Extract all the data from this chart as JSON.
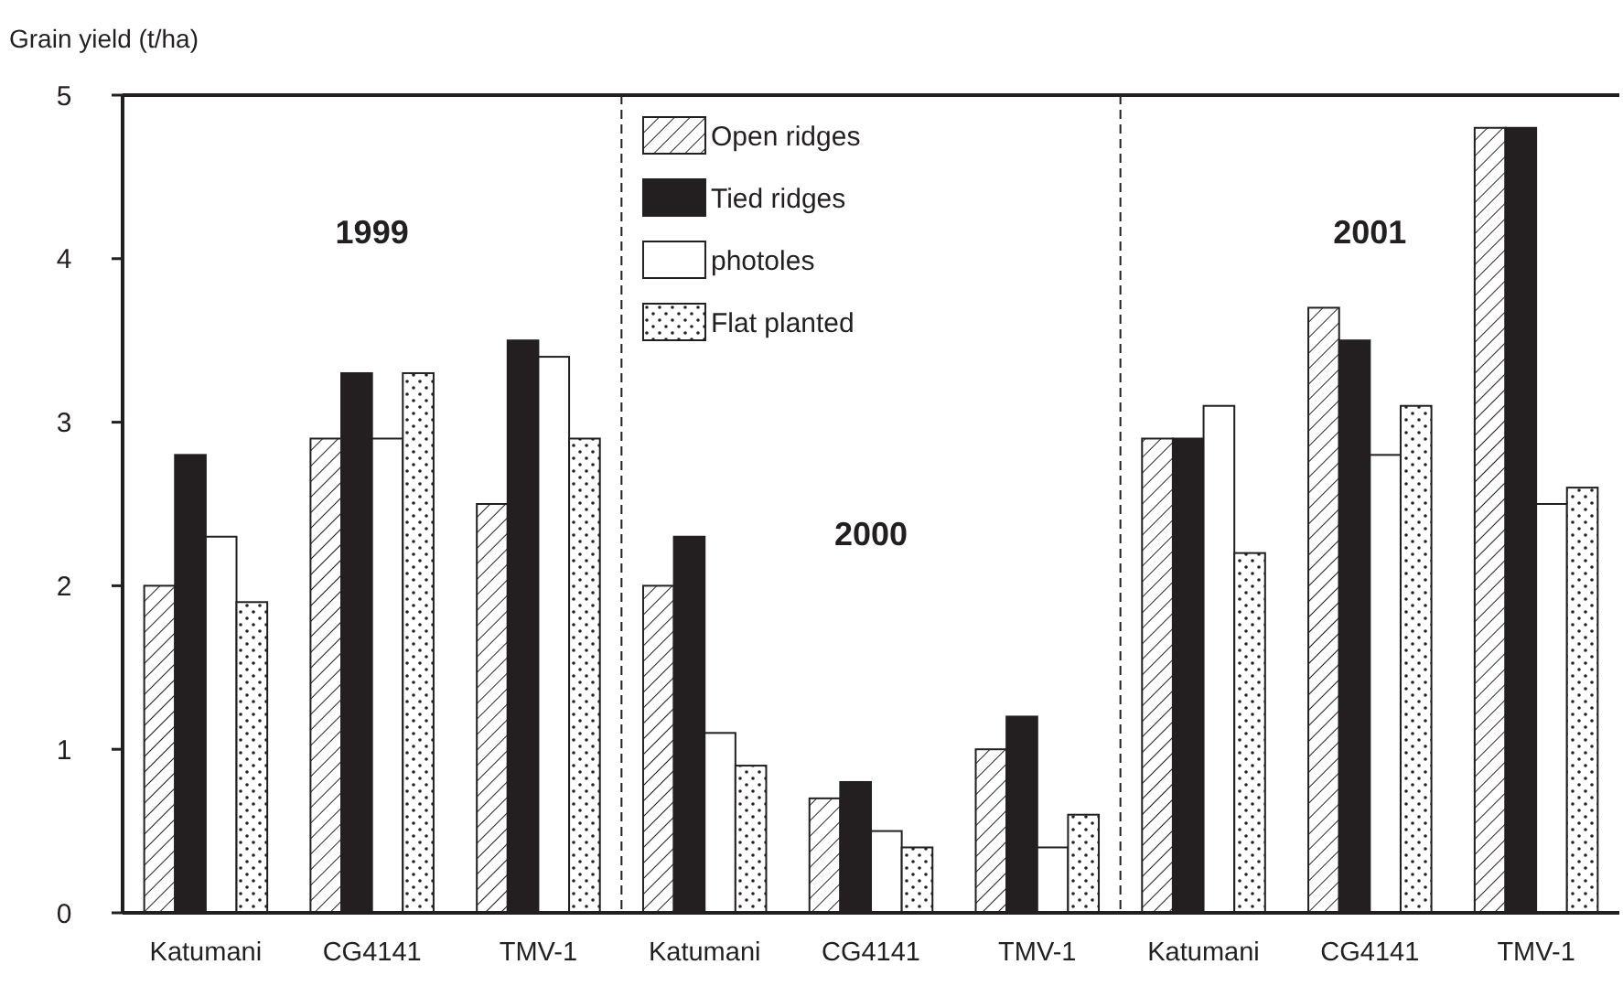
{
  "chart_data": {
    "type": "bar",
    "ylabel": "Grain yield (t/ha)",
    "categories": [
      "Katumani",
      "CG4141",
      "TMV-1",
      "Katumani",
      "CG4141",
      "TMV-1",
      "Katumani",
      "CG4141",
      "TMV-1"
    ],
    "series": [
      {
        "name": "Open ridges",
        "color": "#231f20",
        "values": [
          2.0,
          2.9,
          2.5,
          2.0,
          0.7,
          1.0,
          2.9,
          3.7,
          4.8
        ]
      },
      {
        "name": "Tied ridges",
        "color": "#231f20",
        "values": [
          2.8,
          3.3,
          3.5,
          2.3,
          0.8,
          1.2,
          2.9,
          3.5,
          4.8
        ]
      },
      {
        "name": "photoles",
        "color": "#ffffff",
        "values": [
          2.3,
          2.9,
          3.4,
          1.1,
          0.5,
          0.4,
          3.1,
          2.8,
          2.5
        ]
      },
      {
        "name": "Flat planted",
        "color": "#231f20",
        "values": [
          1.9,
          3.3,
          2.9,
          0.9,
          0.4,
          0.6,
          2.2,
          3.1,
          2.6
        ]
      }
    ],
    "annotations": [
      "1999",
      "2000",
      "2001"
    ],
    "ylim": [
      0,
      5
    ],
    "yticks": [
      0,
      1,
      2,
      3,
      4,
      5
    ],
    "grid": false,
    "legend": "top"
  }
}
